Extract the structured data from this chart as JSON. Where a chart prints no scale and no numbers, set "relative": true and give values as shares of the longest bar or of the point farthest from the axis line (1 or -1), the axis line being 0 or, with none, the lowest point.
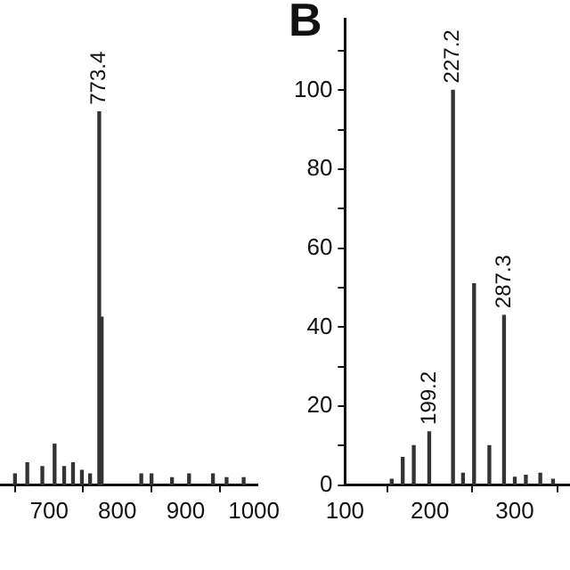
{
  "chart_data": [
    {
      "type": "bar",
      "relative": true,
      "x": [
        650,
        668,
        690,
        708,
        722,
        735,
        748,
        760,
        773.4,
        777,
        835,
        850,
        880,
        905,
        940,
        960,
        985
      ],
      "values": [
        0.03,
        0.06,
        0.05,
        0.11,
        0.05,
        0.06,
        0.04,
        0.03,
        1,
        0.45,
        0.03,
        0.03,
        0.02,
        0.03,
        0.03,
        0.02,
        0.02
      ],
      "color": "#333333",
      "annotations": [
        {
          "text": "773.4",
          "x": 773.4,
          "y": 1
        }
      ],
      "xlim": [
        628,
        1005
      ],
      "xticks": [
        700,
        800,
        900,
        1000
      ],
      "grid": false
    },
    {
      "type": "bar",
      "title": "B",
      "x": [
        155,
        168,
        181,
        199.2,
        227.2,
        239,
        252,
        270,
        287.3,
        300,
        313,
        330,
        345
      ],
      "values": [
        1.5,
        7,
        10,
        13.5,
        100,
        3,
        51,
        10,
        43,
        2,
        2.5,
        3,
        1.5
      ],
      "color": "#333333",
      "annotations": [
        {
          "text": "199.2",
          "x": 199.2,
          "y": 13.5
        },
        {
          "text": "227.2",
          "x": 227.2,
          "y": 100
        },
        {
          "text": "287.3",
          "x": 287.3,
          "y": 43
        }
      ],
      "xlim": [
        100,
        365
      ],
      "xticks": [
        100,
        200,
        300
      ],
      "ylim": [
        0,
        118
      ],
      "yticks": [
        0,
        {
          "value": 10,
          "label": null
        },
        20,
        {
          "value": 30,
          "label": null
        },
        40,
        {
          "value": 50,
          "label": null
        },
        60,
        {
          "value": 70,
          "label": null
        },
        80,
        {
          "value": 90,
          "label": null
        },
        100,
        {
          "value": 110,
          "label": null
        }
      ],
      "grid": false
    }
  ]
}
